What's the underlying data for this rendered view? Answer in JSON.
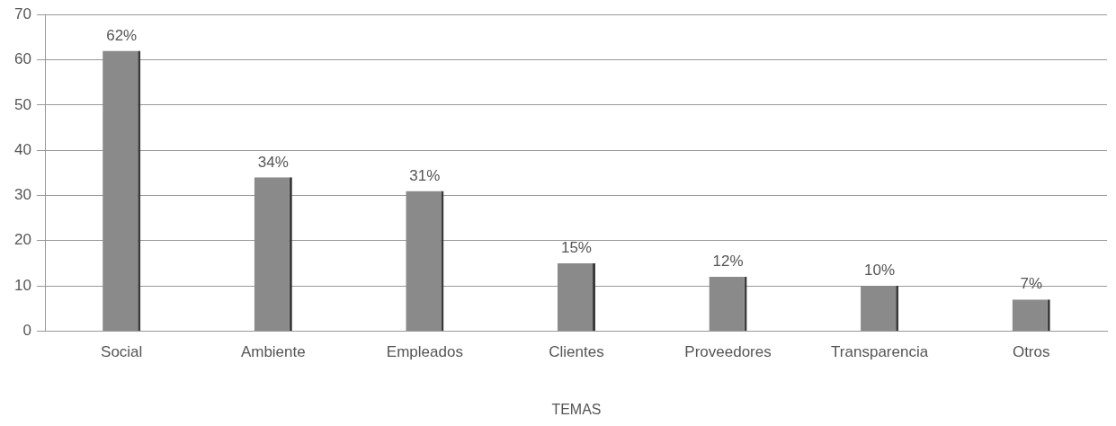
{
  "chart_data": {
    "type": "bar",
    "xlabel": "TEMAS",
    "categories": [
      "Social",
      "Ambiente",
      "Empleados",
      "Clientes",
      "Proveedores",
      "Transparencia",
      "Otros"
    ],
    "values": [
      62,
      34,
      31,
      15,
      12,
      10,
      7
    ],
    "value_labels": [
      "62%",
      "34%",
      "31%",
      "15%",
      "12%",
      "10%",
      "7%"
    ],
    "color": "#8a8a8a",
    "ylim": [
      0,
      70
    ],
    "yticks": [
      0,
      10,
      20,
      30,
      40,
      50,
      60,
      70
    ],
    "grid": "y",
    "legend": false
  }
}
